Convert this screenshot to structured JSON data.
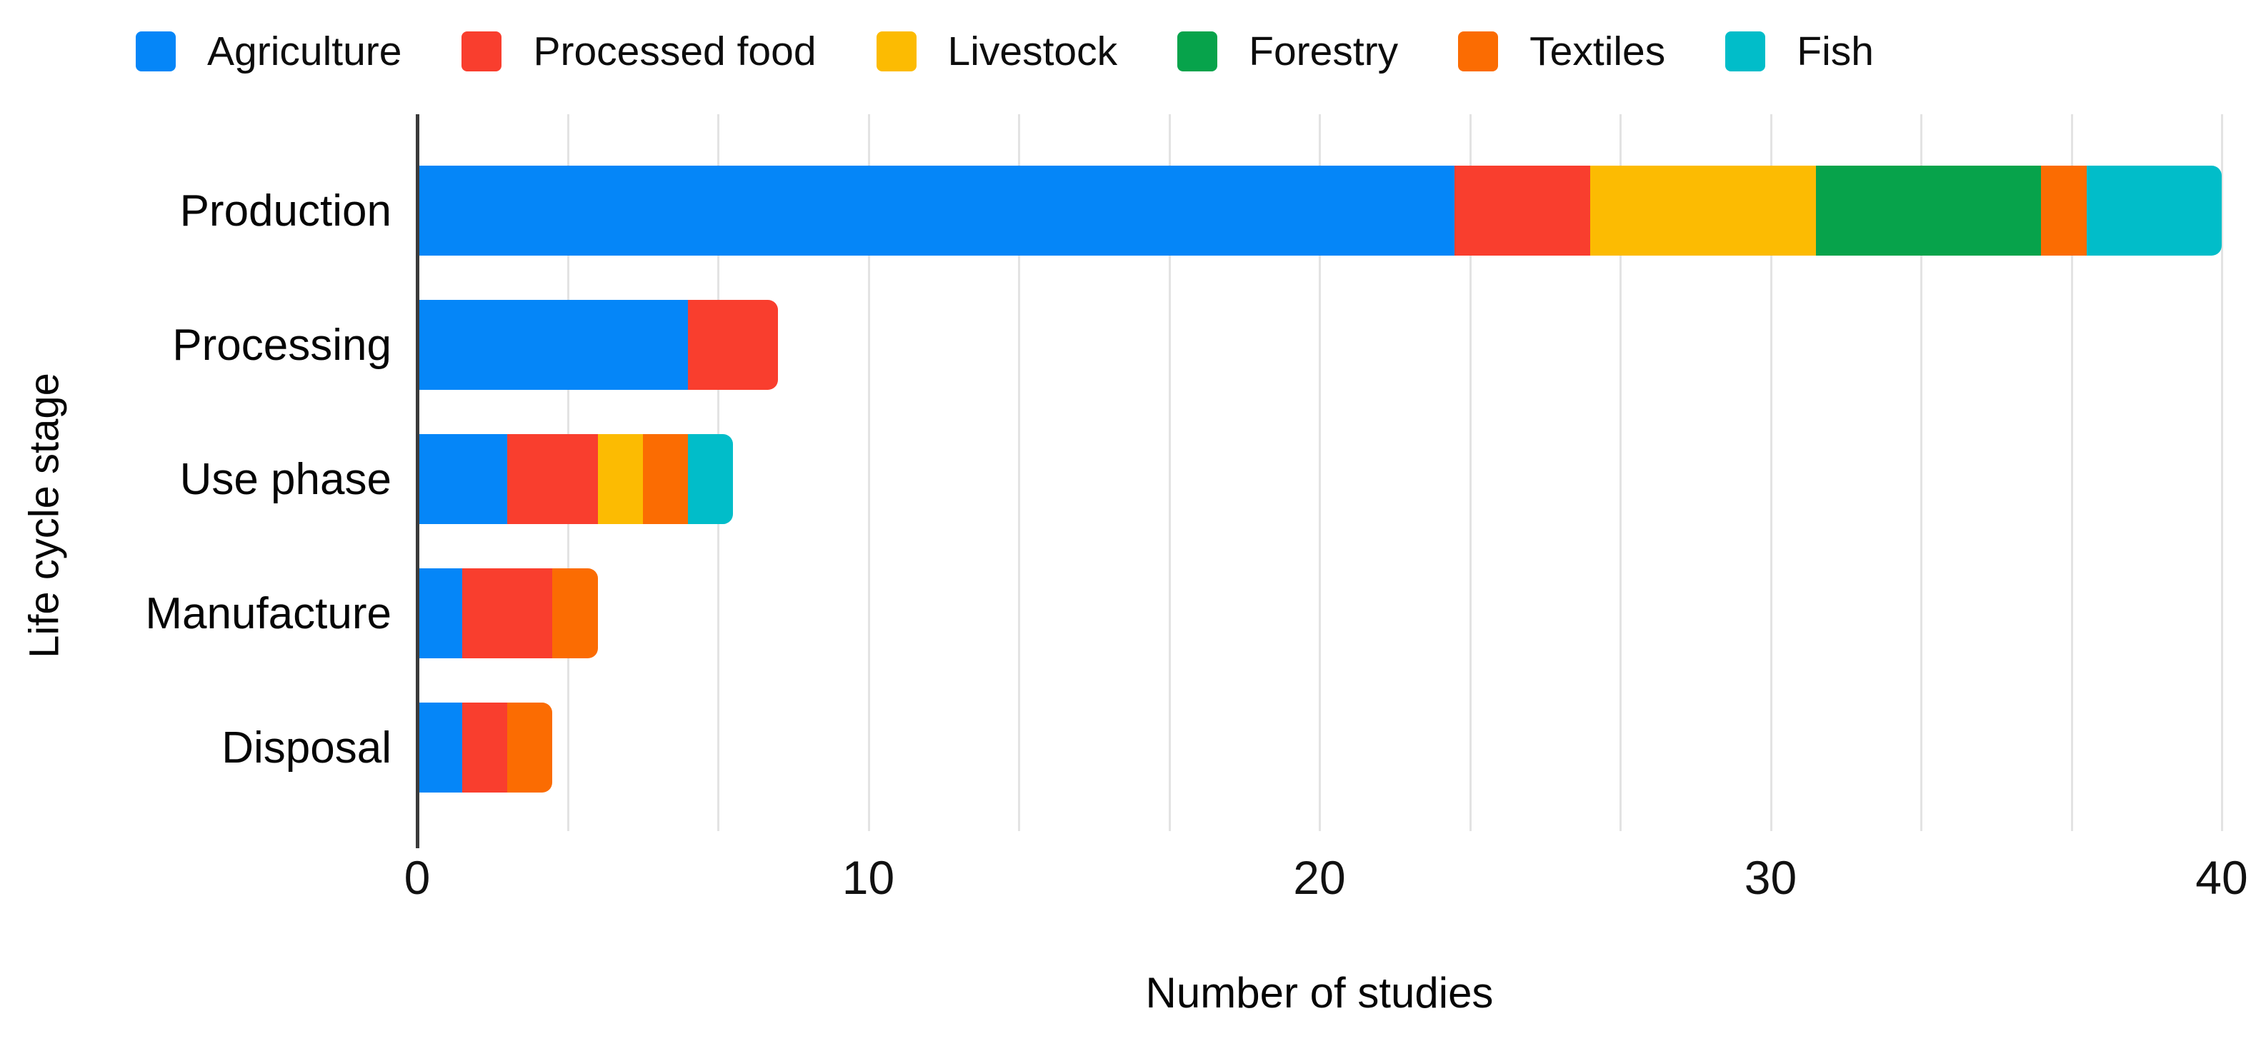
{
  "chart_data": {
    "type": "bar",
    "orientation": "horizontal",
    "stacked": true,
    "title": "",
    "xlabel": "Number of studies",
    "ylabel": "Life cycle stage",
    "xlim": [
      0,
      40
    ],
    "x_major_ticks": [
      0,
      10,
      20,
      30,
      40
    ],
    "x_minor_gridlines_per_major": 2,
    "grid": true,
    "legend_position": "top",
    "categories": [
      "Production",
      "Processing",
      "Use phase",
      "Manufacture",
      "Disposal"
    ],
    "series": [
      {
        "name": "Agriculture",
        "color": "#0586F8",
        "values": [
          23,
          6,
          2,
          1,
          1
        ]
      },
      {
        "name": "Processed food",
        "color": "#F93E2E",
        "values": [
          3,
          2,
          2,
          2,
          1
        ]
      },
      {
        "name": "Livestock",
        "color": "#FCBB02",
        "values": [
          5,
          0,
          1,
          0,
          0
        ]
      },
      {
        "name": "Forestry",
        "color": "#07A34B",
        "values": [
          5,
          0,
          0,
          0,
          0
        ]
      },
      {
        "name": "Textiles",
        "color": "#FB6C02",
        "values": [
          1,
          0,
          1,
          1,
          1
        ]
      },
      {
        "name": "Fish",
        "color": "#01BDC9",
        "values": [
          3,
          0,
          1,
          0,
          0
        ]
      }
    ],
    "totals": [
      40,
      8,
      7,
      4,
      3
    ]
  },
  "style": {
    "axis_line_color": "#3b3b3b",
    "gridline_color": "#e3e3e3",
    "background": "#ffffff",
    "text_color": "#000000"
  }
}
